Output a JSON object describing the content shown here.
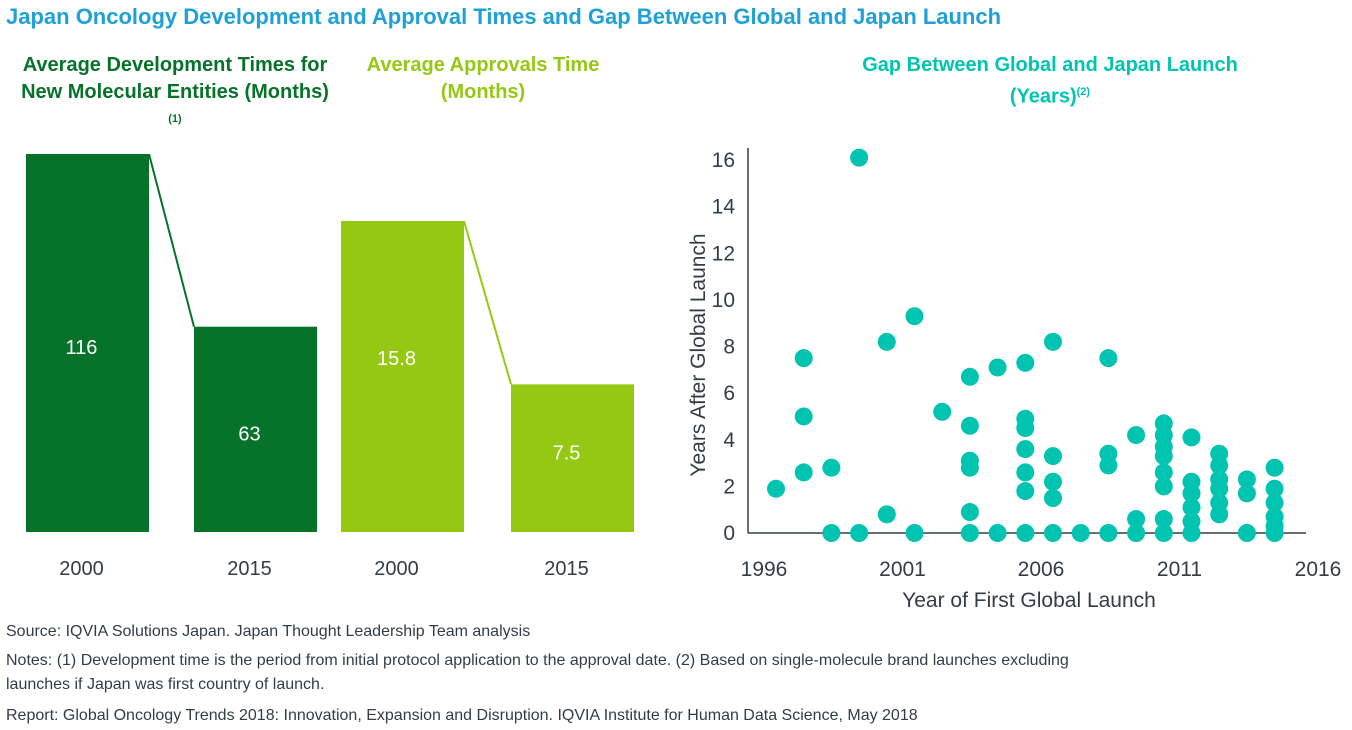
{
  "title": "Japan Oncology Development and Approval Times and Gap Between Global and Japan Launch",
  "panels": {
    "dev": {
      "title": "Average Development Times for New Molecular Entities (Months)",
      "footnote": "(1)"
    },
    "approval": {
      "title_line1": "Average Approvals Time",
      "title_line2": "(Months)"
    },
    "gap": {
      "title_line1": "Gap Between Global and Japan Launch",
      "title_line2": "(Years)",
      "footnote": "(2)"
    }
  },
  "colors": {
    "title": "#1fa0d6",
    "dev": "#06722a",
    "approval": "#95c812",
    "gap": "#00c4b0",
    "axis": "#333d47"
  },
  "footer": {
    "source": "Source: IQVIA Solutions Japan. Japan Thought Leadership Team analysis",
    "notes_line1": "Notes: (1) Development time is the period from initial protocol application to the approval date. (2) Based on single-molecule brand launches excluding",
    "notes_line2": "launches if Japan was first country of launch.",
    "report": "Report: Global Oncology Trends 2018: Innovation, Expansion and Disruption. IQVIA Institute for Human Data Science, May 2018"
  },
  "chart_data": [
    {
      "type": "bar",
      "title": "Average Development Times for New Molecular Entities (Months)",
      "categories": [
        "2000",
        "2015"
      ],
      "values": [
        116,
        63
      ],
      "value_labels": [
        "116",
        "63"
      ],
      "color": "#06722a",
      "connector_line": true
    },
    {
      "type": "bar",
      "title": "Average Approvals Time (Months)",
      "categories": [
        "2000",
        "2015"
      ],
      "values": [
        15.8,
        7.5
      ],
      "value_labels": [
        "15.8",
        "7.5"
      ],
      "color": "#95c812",
      "connector_line": true
    },
    {
      "type": "scatter",
      "title": "Gap Between Global and Japan Launch (Years)",
      "xlabel": "Year of First Global Launch",
      "ylabel": "Years After Global Launch",
      "xlim": [
        1996,
        2016
      ],
      "ylim": [
        0,
        16
      ],
      "xticks": [
        1996,
        2001,
        2006,
        2011,
        2016
      ],
      "yticks": [
        0,
        2,
        4,
        6,
        8,
        10,
        12,
        14,
        16
      ],
      "grid": false,
      "color": "#00c4b0",
      "points": [
        [
          1997,
          1.9
        ],
        [
          1998,
          7.5
        ],
        [
          1998,
          5.0
        ],
        [
          1998,
          2.6
        ],
        [
          1999,
          2.8
        ],
        [
          1999,
          0
        ],
        [
          2000,
          16.1
        ],
        [
          2000,
          0
        ],
        [
          2001,
          8.2
        ],
        [
          2001,
          0.8
        ],
        [
          2002,
          9.3
        ],
        [
          2002,
          0
        ],
        [
          2003,
          5.2
        ],
        [
          2004,
          6.7
        ],
        [
          2004,
          4.6
        ],
        [
          2004,
          3.1
        ],
        [
          2004,
          2.8
        ],
        [
          2004,
          0.9
        ],
        [
          2004,
          0
        ],
        [
          2005,
          7.1
        ],
        [
          2005,
          0
        ],
        [
          2006,
          7.3
        ],
        [
          2006,
          4.9
        ],
        [
          2006,
          4.5
        ],
        [
          2006,
          3.6
        ],
        [
          2006,
          2.6
        ],
        [
          2006,
          1.8
        ],
        [
          2006,
          0
        ],
        [
          2007,
          8.2
        ],
        [
          2007,
          3.3
        ],
        [
          2007,
          2.2
        ],
        [
          2007,
          1.5
        ],
        [
          2007,
          0
        ],
        [
          2008,
          0
        ],
        [
          2009,
          7.5
        ],
        [
          2009,
          3.4
        ],
        [
          2009,
          2.9
        ],
        [
          2009,
          0
        ],
        [
          2010,
          4.2
        ],
        [
          2010,
          0.6
        ],
        [
          2010,
          0
        ],
        [
          2011,
          4.7
        ],
        [
          2011,
          4.2
        ],
        [
          2011,
          3.7
        ],
        [
          2011,
          3.3
        ],
        [
          2011,
          2.6
        ],
        [
          2011,
          2.0
        ],
        [
          2011,
          0.6
        ],
        [
          2011,
          0
        ],
        [
          2012,
          4.1
        ],
        [
          2012,
          2.2
        ],
        [
          2012,
          1.7
        ],
        [
          2012,
          1.1
        ],
        [
          2012,
          0.5
        ],
        [
          2012,
          0
        ],
        [
          2013,
          3.4
        ],
        [
          2013,
          2.9
        ],
        [
          2013,
          2.3
        ],
        [
          2013,
          1.9
        ],
        [
          2013,
          1.3
        ],
        [
          2013,
          0.8
        ],
        [
          2014,
          2.3
        ],
        [
          2014,
          1.7
        ],
        [
          2014,
          0
        ],
        [
          2015,
          2.8
        ],
        [
          2015,
          1.9
        ],
        [
          2015,
          1.3
        ],
        [
          2015,
          0.7
        ],
        [
          2015,
          0.3
        ],
        [
          2015,
          0
        ]
      ]
    }
  ]
}
